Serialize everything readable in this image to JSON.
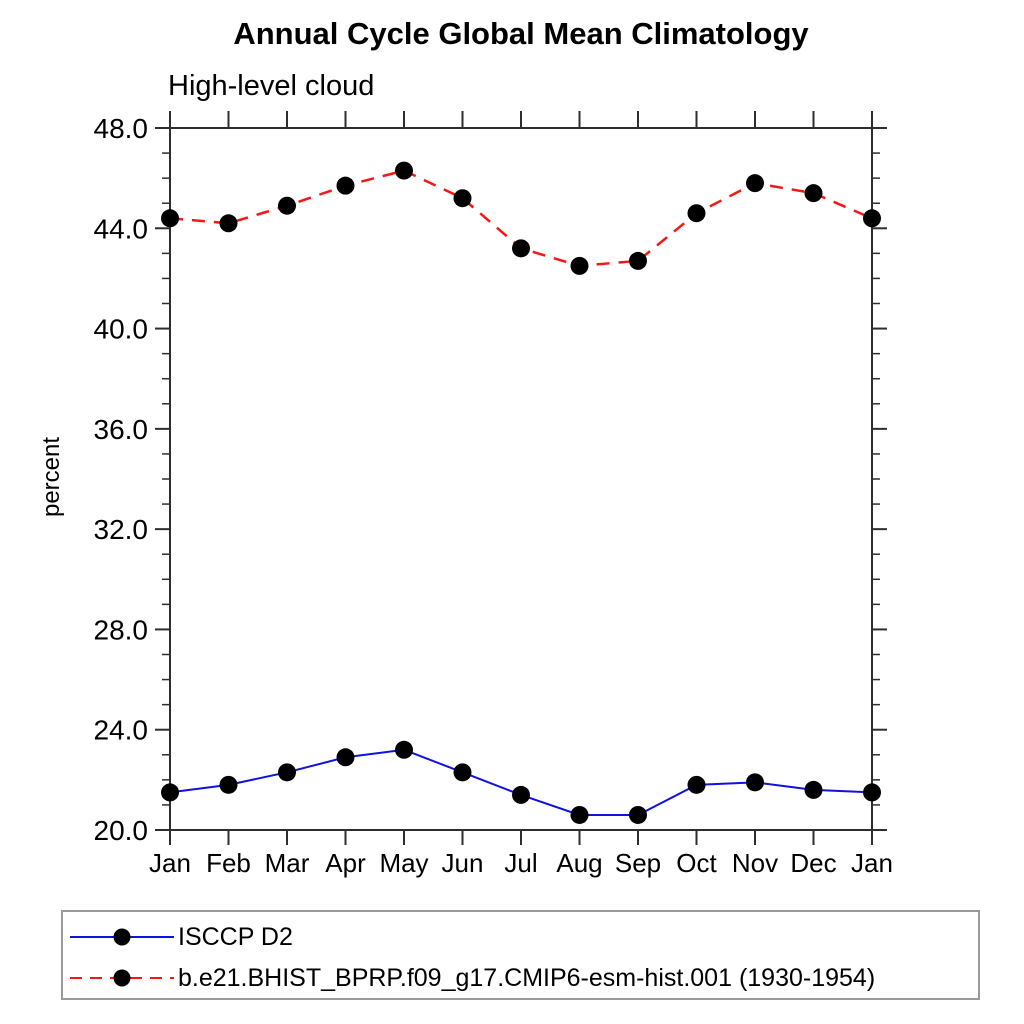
{
  "chart": {
    "title": "Annual Cycle Global Mean Climatology",
    "subtitle": "High-level cloud",
    "ylabel": "percent"
  },
  "legend": {
    "items": [
      {
        "label": "ISCCP D2",
        "color": "#1111dd",
        "dash": "solid",
        "marker": "filled-circle"
      },
      {
        "label": "b.e21.BHIST_BPRP.f09_g17.CMIP6-esm-hist.001 (1930-1954)",
        "color": "#fa1515",
        "dash": "dashed",
        "marker": "filled-circle"
      }
    ]
  },
  "chart_data": {
    "type": "line",
    "title": "Annual Cycle Global Mean Climatology",
    "subtitle": "High-level cloud",
    "xlabel": "",
    "ylabel": "percent",
    "categories": [
      "Jan",
      "Feb",
      "Mar",
      "Apr",
      "May",
      "Jun",
      "Jul",
      "Aug",
      "Sep",
      "Oct",
      "Nov",
      "Dec",
      "Jan"
    ],
    "series": [
      {
        "name": "ISCCP D2",
        "color": "#1111dd",
        "style": "solid",
        "marker": "filled-circle",
        "marker_color": "#000000",
        "values": [
          21.5,
          21.8,
          22.3,
          22.9,
          23.2,
          22.3,
          21.4,
          20.6,
          20.6,
          21.8,
          21.9,
          21.6,
          21.5
        ]
      },
      {
        "name": "b.e21.BHIST_BPRP.f09_g17.CMIP6-esm-hist.001 (1930-1954)",
        "color": "#fa1515",
        "style": "dashed",
        "marker": "filled-circle",
        "marker_color": "#000000",
        "values": [
          44.4,
          44.2,
          44.9,
          45.7,
          46.3,
          45.2,
          43.2,
          42.5,
          42.7,
          44.6,
          45.8,
          45.4,
          44.4
        ]
      }
    ],
    "ylim": [
      20,
      48
    ],
    "ytick_major": [
      20,
      24,
      28,
      32,
      36,
      40,
      44,
      48
    ],
    "ytick_labels": [
      "20.0",
      "24.0",
      "28.0",
      "32.0",
      "36.0",
      "40.0",
      "44.0",
      "48.0"
    ],
    "ytick_minor_step": 1,
    "grid": false,
    "legend_position": "bottom",
    "axis_color": "#2e2e2e"
  }
}
